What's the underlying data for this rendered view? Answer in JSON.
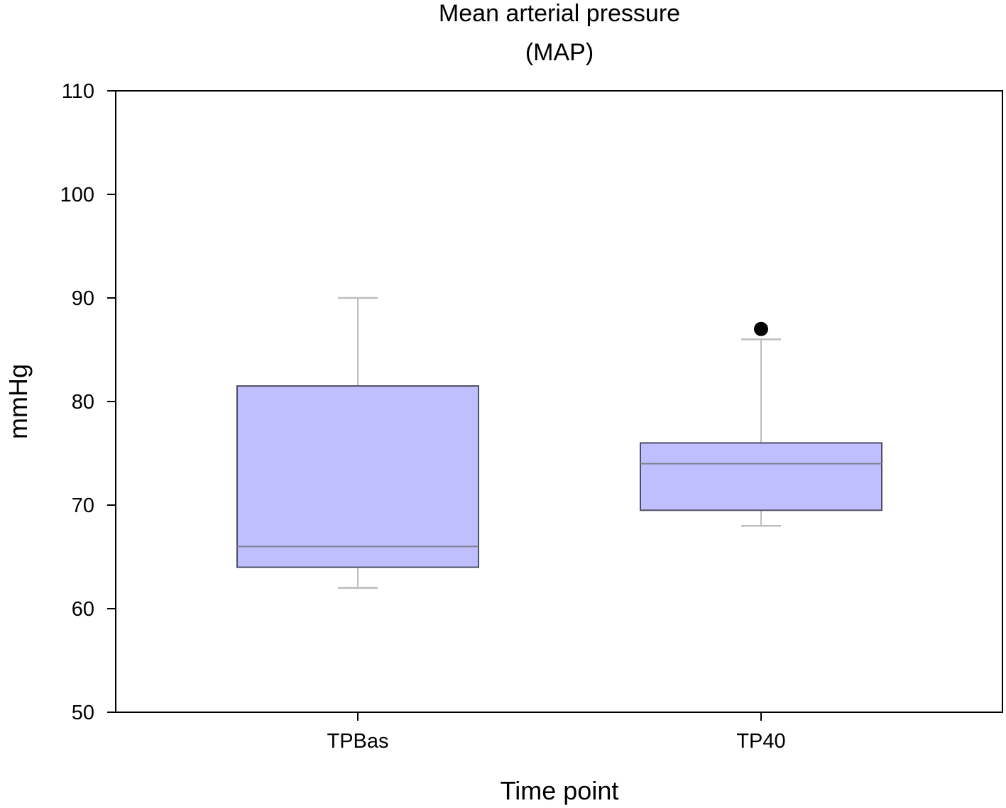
{
  "chart_data": {
    "type": "box",
    "title_lines": [
      "Mean arterial pressure",
      "(MAP)"
    ],
    "xlabel": "Time point",
    "ylabel": "mmHg",
    "ylim": [
      50,
      110
    ],
    "yticks": [
      50,
      60,
      70,
      80,
      90,
      100,
      110
    ],
    "ytick_labels": [
      "50",
      "60",
      "70",
      "80",
      "90",
      "100",
      "110"
    ],
    "grid": false,
    "legend": "none",
    "categories": [
      "TPBas",
      "TP40"
    ],
    "boxes": [
      {
        "category": "TPBas",
        "whisker_low": 62,
        "q1": 64,
        "median": 66,
        "q3": 81.5,
        "whisker_high": 90,
        "outliers": []
      },
      {
        "category": "TP40",
        "whisker_low": 68,
        "q1": 69.5,
        "median": 74,
        "q3": 76,
        "whisker_high": 86,
        "outliers": [
          87
        ]
      }
    ],
    "colors": {
      "box_fill": "#bfbfff",
      "box_edge": "#4d4d66",
      "whisker": "#bdbdbd",
      "outlier": "#000000",
      "axis": "#000000"
    }
  }
}
